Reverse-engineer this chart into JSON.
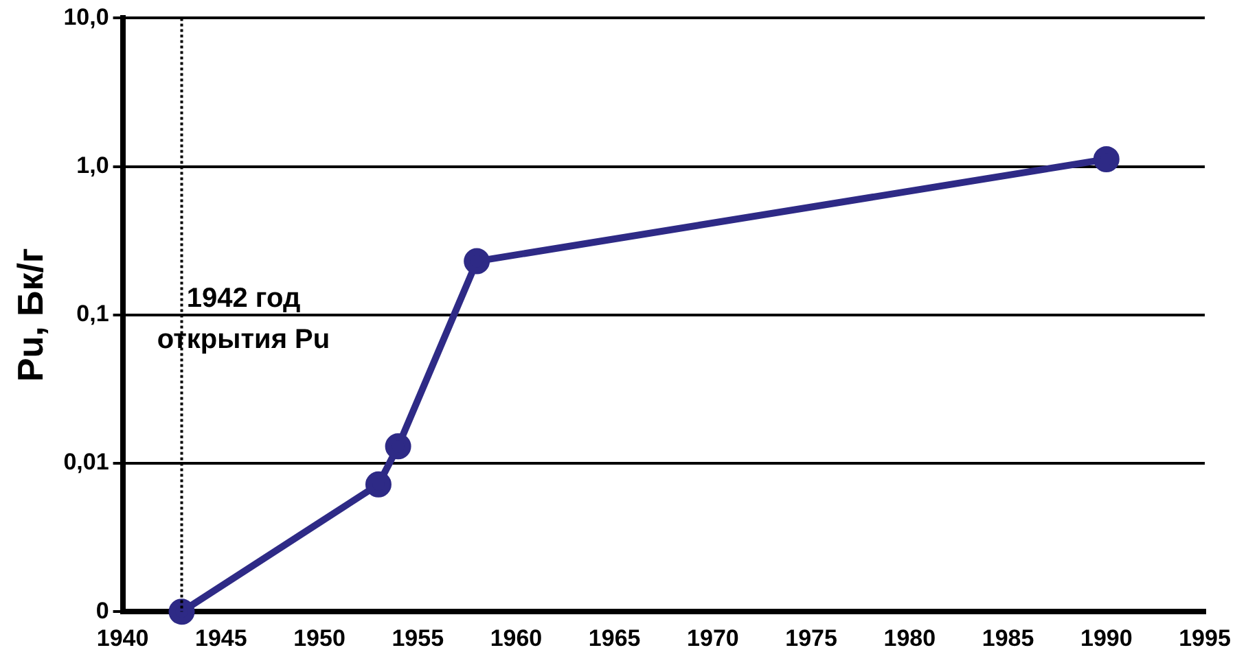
{
  "chart_data": {
    "type": "line",
    "ylabel": "Pu, Бк/г",
    "x": [
      1943,
      1953,
      1954,
      1958,
      1990
    ],
    "series": [
      {
        "color": "#2e2a86",
        "values": [
          0.001,
          0.0072,
          0.013,
          0.23,
          1.12
        ]
      }
    ],
    "xlim": [
      1940,
      1995
    ],
    "xticks": [
      1940,
      1945,
      1950,
      1955,
      1960,
      1965,
      1970,
      1975,
      1980,
      1985,
      1990,
      1995
    ],
    "log": "y",
    "ylim": [
      0.001,
      10
    ],
    "yticks": [
      {
        "value": 0.001,
        "label": "0"
      },
      {
        "value": 0.01,
        "label": "0,01"
      },
      {
        "value": 0.1,
        "label": "0,1"
      },
      {
        "value": 1,
        "label": "1,0"
      },
      {
        "value": 10,
        "label": "10,0"
      }
    ],
    "grid": "y",
    "legend": false,
    "marker": "circle",
    "line_style": "solid",
    "ref_lines": [
      {
        "axis": "x",
        "value": 1943,
        "label": "1942 год открытия Pu",
        "line_style": "dotted"
      }
    ]
  }
}
